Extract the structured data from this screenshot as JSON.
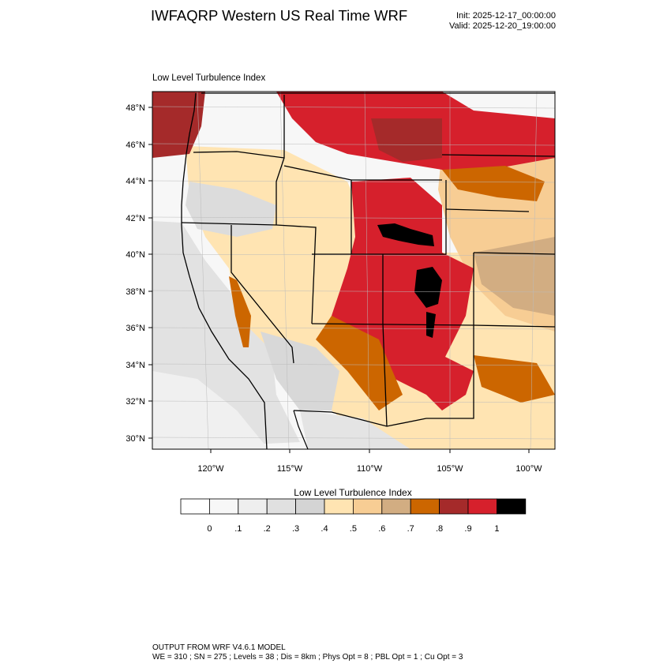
{
  "header": {
    "title": "IWFAQRP Western US Real Time WRF",
    "init": "Init: 2025-12-17_00:00:00",
    "valid": "Valid: 2025-12-20_19:00:00"
  },
  "panel": {
    "title": "Low Level Turbulence Index"
  },
  "map": {
    "lat_labels": [
      "48°N",
      "46°N",
      "44°N",
      "42°N",
      "40°N",
      "38°N",
      "36°N",
      "34°N",
      "32°N",
      "30°N"
    ],
    "lon_labels": [
      "120°W",
      "115°W",
      "110°W",
      "105°W",
      "100°W"
    ],
    "extent": {
      "lon_min": -123.6,
      "lon_max": -98.4,
      "lat_min": 29.5,
      "lat_max": 48.8
    }
  },
  "colorbar": {
    "title": "Low Level Turbulence Index",
    "tick_labels": [
      "0",
      ".1",
      ".2",
      ".3",
      ".4",
      ".5",
      ".6",
      ".7",
      ".8",
      ".9",
      "1"
    ],
    "colors": [
      "#ffffff",
      "#f7f7f7",
      "#eeeeee",
      "#e0e0e0",
      "#d4d4d4",
      "#ffe4b2",
      "#f7cd94",
      "#d2ad82",
      "#cc6600",
      "#a52a2a",
      "#d6202c",
      "#000000"
    ]
  },
  "footer": {
    "line1": "OUTPUT FROM WRF V4.6.1 MODEL",
    "line2": "WE = 310 ; SN = 275 ; Levels = 38 ; Dis = 8km ; Phys Opt = 8 ; PBL Opt = 1 ; Cu Opt = 3"
  }
}
